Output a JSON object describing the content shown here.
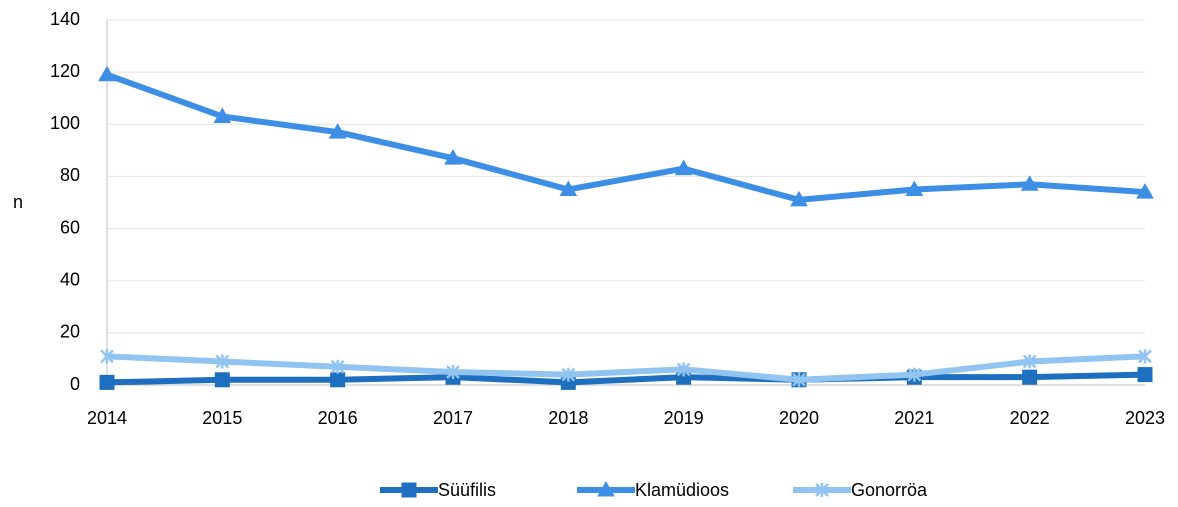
{
  "chart_data": {
    "type": "line",
    "y_label": "n",
    "categories": [
      "2014",
      "2015",
      "2016",
      "2017",
      "2018",
      "2019",
      "2020",
      "2021",
      "2022",
      "2023"
    ],
    "series": [
      {
        "name": "Süüfilis",
        "color": "#1f6fc0",
        "marker": "square",
        "values": [
          1,
          2,
          2,
          3,
          1,
          3,
          2,
          3,
          3,
          4
        ]
      },
      {
        "name": "Klamüdioos",
        "color": "#3d8fe6",
        "marker": "triangle",
        "values": [
          119,
          103,
          97,
          87,
          75,
          83,
          71,
          75,
          77,
          74
        ]
      },
      {
        "name": "Gonorröa",
        "color": "#92c4f2",
        "marker": "star",
        "values": [
          11,
          9,
          7,
          5,
          4,
          6,
          2,
          4,
          9,
          11
        ]
      }
    ],
    "ylim": [
      0,
      140
    ],
    "yticks": [
      0,
      20,
      40,
      60,
      80,
      100,
      120,
      140
    ],
    "grid": true,
    "legend": "bottom"
  }
}
